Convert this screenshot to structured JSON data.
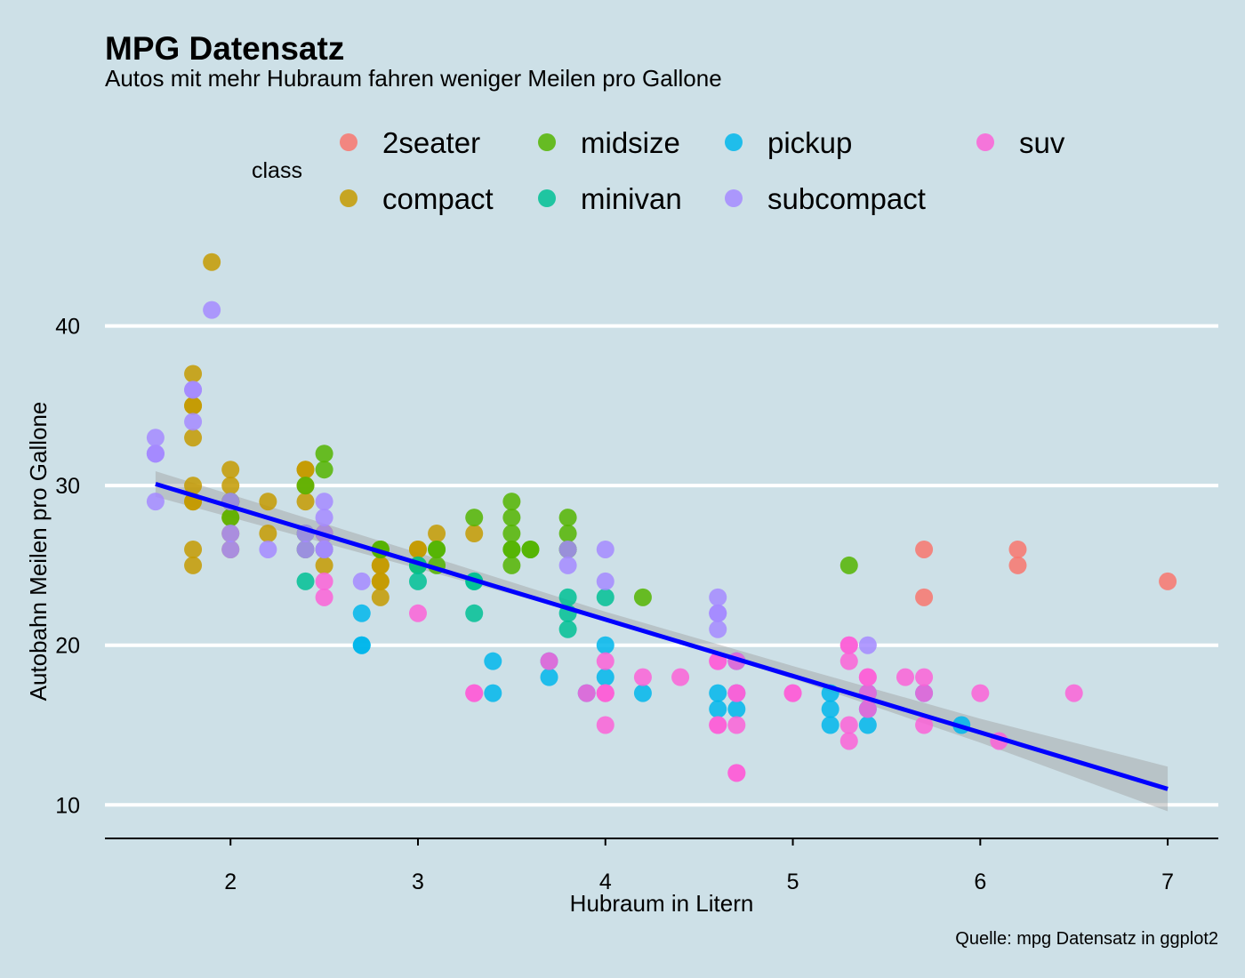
{
  "chart_data": {
    "type": "scatter",
    "title": "MPG Datensatz",
    "subtitle": "Autos mit mehr Hubraum fahren weniger Meilen pro Gallone",
    "xlabel": "Hubraum in Litern",
    "ylabel": "Autobahn Meilen pro Gallone",
    "caption": "Quelle: mpg Datensatz in ggplot2",
    "xlim": [
      1.33,
      7.27
    ],
    "ylim": [
      7.9,
      45.1
    ],
    "x_ticks": [
      2,
      3,
      4,
      5,
      6,
      7
    ],
    "y_ticks": [
      10,
      20,
      30,
      40
    ],
    "grid": "horizontal major only",
    "legend": {
      "title": "class",
      "position": "top",
      "entries": [
        {
          "label": "2seater",
          "color": "#F8766D"
        },
        {
          "label": "compact",
          "color": "#C49A00"
        },
        {
          "label": "midsize",
          "color": "#53B400"
        },
        {
          "label": "minivan",
          "color": "#00C094"
        },
        {
          "label": "pickup",
          "color": "#00B6EB"
        },
        {
          "label": "subcompact",
          "color": "#A58AFF"
        },
        {
          "label": "suv",
          "color": "#FB61D7"
        }
      ]
    },
    "series": [
      {
        "name": "2seater",
        "color": "#F8766D",
        "points": [
          [
            5.7,
            26
          ],
          [
            5.7,
            23
          ],
          [
            6.2,
            26
          ],
          [
            6.2,
            25
          ],
          [
            7.0,
            24
          ]
        ]
      },
      {
        "name": "compact",
        "color": "#C49A00",
        "points": [
          [
            1.8,
            29
          ],
          [
            1.8,
            29
          ],
          [
            2.0,
            31
          ],
          [
            2.0,
            30
          ],
          [
            2.8,
            26
          ],
          [
            2.8,
            26
          ],
          [
            3.1,
            27
          ],
          [
            1.8,
            26
          ],
          [
            1.8,
            25
          ],
          [
            2.0,
            28
          ],
          [
            2.0,
            27
          ],
          [
            2.8,
            25
          ],
          [
            2.8,
            25
          ],
          [
            2.2,
            27
          ],
          [
            2.2,
            29
          ],
          [
            2.4,
            31
          ],
          [
            2.4,
            31
          ],
          [
            3.0,
            26
          ],
          [
            3.0,
            26
          ],
          [
            3.3,
            27
          ],
          [
            1.8,
            30
          ],
          [
            1.8,
            33
          ],
          [
            1.8,
            35
          ],
          [
            1.8,
            37
          ],
          [
            1.8,
            35
          ],
          [
            2.0,
            29
          ],
          [
            2.0,
            26
          ],
          [
            2.0,
            29
          ],
          [
            2.0,
            29
          ],
          [
            2.8,
            24
          ],
          [
            2.8,
            24
          ],
          [
            2.8,
            23
          ],
          [
            1.9,
            44
          ],
          [
            2.5,
            27
          ],
          [
            2.5,
            25
          ],
          [
            2.5,
            27
          ],
          [
            2.4,
            30
          ],
          [
            2.4,
            29
          ]
        ]
      },
      {
        "name": "midsize",
        "color": "#53B400",
        "points": [
          [
            2.8,
            26
          ],
          [
            3.1,
            25
          ],
          [
            4.2,
            23
          ],
          [
            2.4,
            27
          ],
          [
            2.4,
            30
          ],
          [
            3.1,
            26
          ],
          [
            3.5,
            29
          ],
          [
            3.6,
            26
          ],
          [
            2.5,
            32
          ],
          [
            2.5,
            31
          ],
          [
            3.3,
            28
          ],
          [
            3.5,
            27
          ],
          [
            3.5,
            26
          ],
          [
            3.0,
            25
          ],
          [
            3.8,
            28
          ],
          [
            3.8,
            26
          ],
          [
            5.3,
            25
          ],
          [
            2.4,
            26
          ],
          [
            2.5,
            26
          ],
          [
            3.5,
            26
          ],
          [
            3.5,
            25
          ],
          [
            3.8,
            27
          ],
          [
            3.8,
            26
          ],
          [
            2.0,
            28
          ],
          [
            2.0,
            29
          ],
          [
            2.8,
            26
          ],
          [
            3.1,
            26
          ],
          [
            3.5,
            28
          ],
          [
            3.6,
            26
          ]
        ]
      },
      {
        "name": "minivan",
        "color": "#00C094",
        "points": [
          [
            2.4,
            24
          ],
          [
            3.0,
            24
          ],
          [
            3.3,
            22
          ],
          [
            3.3,
            24
          ],
          [
            3.3,
            24
          ],
          [
            3.8,
            22
          ],
          [
            3.8,
            21
          ],
          [
            3.8,
            23
          ],
          [
            4.0,
            23
          ],
          [
            3.0,
            25
          ]
        ]
      },
      {
        "name": "pickup",
        "color": "#00B6EB",
        "points": [
          [
            2.7,
            20
          ],
          [
            2.7,
            20
          ],
          [
            2.7,
            22
          ],
          [
            3.4,
            17
          ],
          [
            3.4,
            19
          ],
          [
            4.0,
            18
          ],
          [
            4.0,
            20
          ],
          [
            4.7,
            19
          ],
          [
            4.7,
            17
          ],
          [
            4.7,
            16
          ],
          [
            5.2,
            17
          ],
          [
            5.2,
            16
          ],
          [
            5.2,
            15
          ],
          [
            5.7,
            17
          ],
          [
            5.9,
            15
          ],
          [
            3.7,
            19
          ],
          [
            3.7,
            18
          ],
          [
            3.9,
            17
          ],
          [
            4.2,
            17
          ],
          [
            4.6,
            17
          ],
          [
            4.6,
            16
          ],
          [
            5.4,
            15
          ],
          [
            5.4,
            17
          ],
          [
            5.4,
            16
          ]
        ]
      },
      {
        "name": "subcompact",
        "color": "#A58AFF",
        "points": [
          [
            3.8,
            26
          ],
          [
            3.8,
            25
          ],
          [
            4.0,
            26
          ],
          [
            4.0,
            24
          ],
          [
            4.6,
            21
          ],
          [
            4.6,
            22
          ],
          [
            4.6,
            23
          ],
          [
            4.6,
            22
          ],
          [
            5.4,
            20
          ],
          [
            1.6,
            33
          ],
          [
            1.6,
            32
          ],
          [
            1.6,
            32
          ],
          [
            1.6,
            29
          ],
          [
            1.6,
            32
          ],
          [
            1.8,
            34
          ],
          [
            1.8,
            36
          ],
          [
            1.8,
            36
          ],
          [
            2.0,
            29
          ],
          [
            2.4,
            26
          ],
          [
            2.4,
            27
          ],
          [
            2.5,
            27
          ],
          [
            2.5,
            28
          ],
          [
            2.5,
            26
          ],
          [
            2.5,
            29
          ],
          [
            2.7,
            24
          ],
          [
            1.9,
            41
          ],
          [
            2.0,
            26
          ],
          [
            2.0,
            27
          ],
          [
            2.2,
            26
          ],
          [
            2.5,
            26
          ]
        ]
      },
      {
        "name": "suv",
        "color": "#FB61D7",
        "points": [
          [
            5.3,
            20
          ],
          [
            5.3,
            15
          ],
          [
            5.3,
            20
          ],
          [
            5.7,
            17
          ],
          [
            6.0,
            17
          ],
          [
            4.7,
            17
          ],
          [
            4.7,
            19
          ],
          [
            4.7,
            12
          ],
          [
            5.7,
            15
          ],
          [
            6.1,
            14
          ],
          [
            4.0,
            17
          ],
          [
            4.2,
            18
          ],
          [
            4.4,
            18
          ],
          [
            4.6,
            15
          ],
          [
            4.6,
            19
          ],
          [
            5.4,
            18
          ],
          [
            5.4,
            16
          ],
          [
            4.0,
            19
          ],
          [
            4.0,
            17
          ],
          [
            4.6,
            15
          ],
          [
            5.0,
            17
          ],
          [
            4.7,
            15
          ],
          [
            5.7,
            18
          ],
          [
            5.6,
            18
          ],
          [
            3.3,
            17
          ],
          [
            3.9,
            17
          ],
          [
            4.6,
            19
          ],
          [
            5.3,
            14
          ],
          [
            5.3,
            19
          ],
          [
            5.4,
            17
          ],
          [
            5.4,
            18
          ],
          [
            6.5,
            17
          ],
          [
            4.7,
            12
          ],
          [
            4.7,
            17
          ],
          [
            4.0,
            15
          ],
          [
            4.0,
            17
          ],
          [
            5.0,
            17
          ],
          [
            3.0,
            22
          ],
          [
            3.7,
            19
          ],
          [
            2.5,
            24
          ],
          [
            2.5,
            23
          ],
          [
            3.3,
            17
          ]
        ]
      }
    ],
    "smooth": {
      "method": "linear",
      "color": "#0000FF",
      "band_color": "#999999",
      "line": [
        [
          1.6,
          30.1
        ],
        [
          7.0,
          11.0
        ]
      ],
      "band": [
        [
          1.6,
          30.9,
          29.3
        ],
        [
          3.0,
          25.8,
          24.8
        ],
        [
          4.0,
          22.1,
          21.6
        ],
        [
          5.0,
          18.7,
          17.9
        ],
        [
          6.0,
          15.4,
          13.9
        ],
        [
          7.0,
          12.4,
          9.6
        ]
      ]
    }
  }
}
